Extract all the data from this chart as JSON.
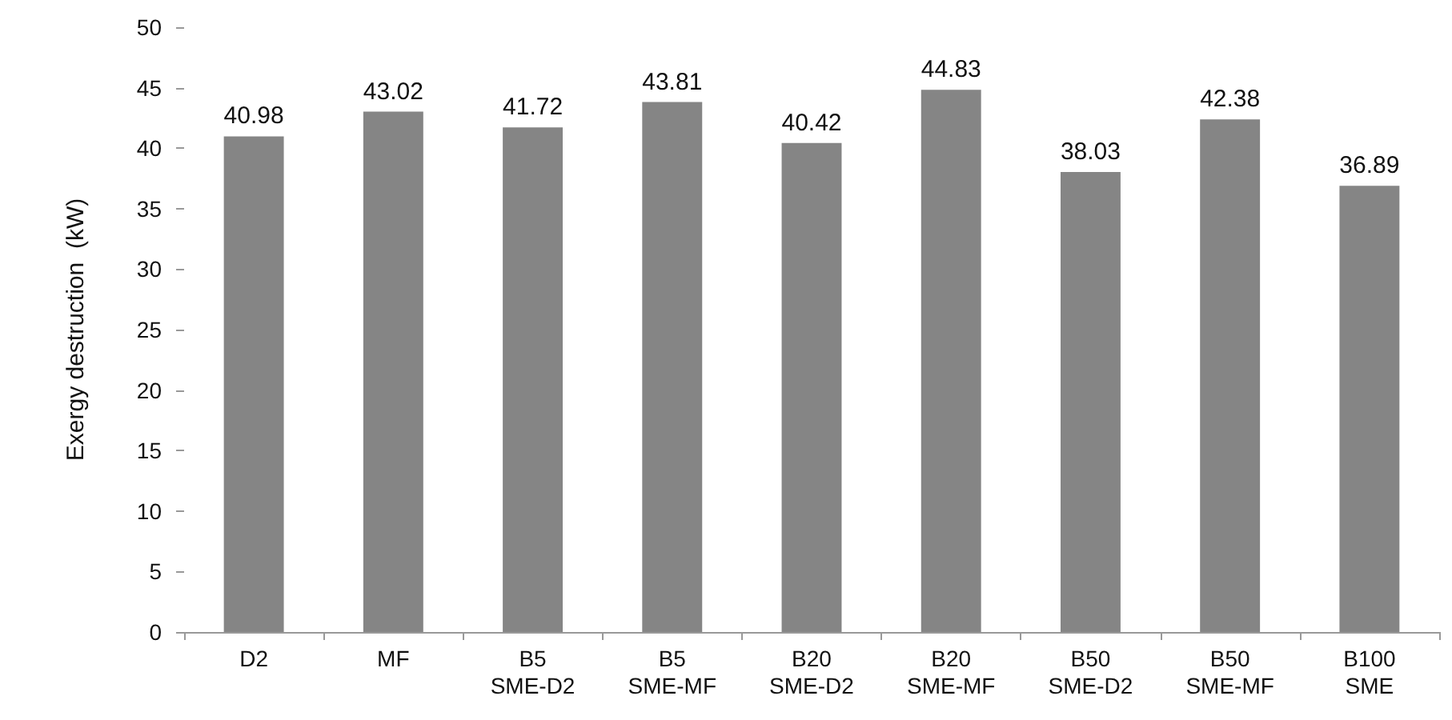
{
  "chart_data": {
    "type": "bar",
    "ylabel": "Exergy destruction  (kW)",
    "categories": [
      "D2",
      "MF",
      "B5\nSME-D2",
      "B5\nSME-MF",
      "B20\nSME-D2",
      "B20\nSME-MF",
      "B50\nSME-D2",
      "B50\nSME-MF",
      "B100\nSME"
    ],
    "values": [
      40.98,
      43.02,
      41.72,
      43.81,
      40.42,
      44.83,
      38.03,
      42.38,
      36.89
    ],
    "color": "#858585",
    "data_labels": true,
    "ylim": [
      0,
      50
    ],
    "yticks": [
      0,
      5,
      10,
      15,
      20,
      25,
      30,
      35,
      40,
      45,
      50
    ],
    "grid": false
  }
}
